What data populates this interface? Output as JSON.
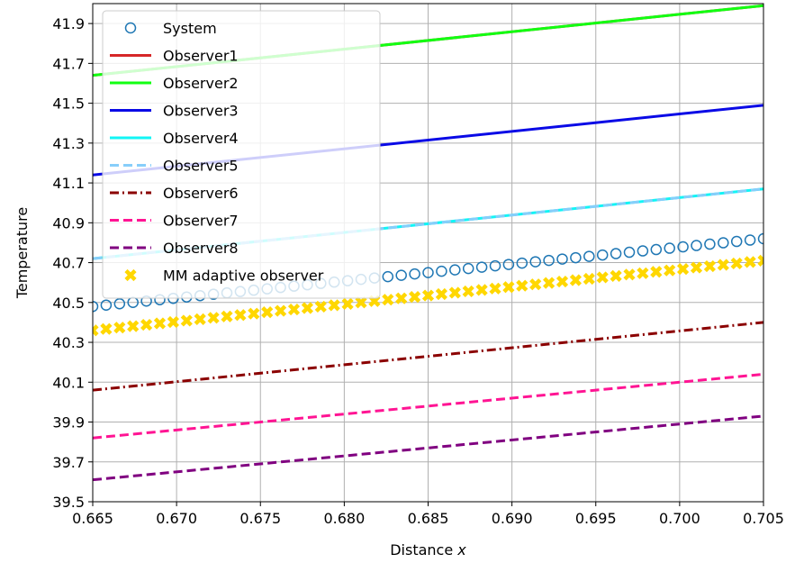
{
  "chart_data": {
    "type": "line",
    "xlabel": "Distance x",
    "xlabel_plain": "Distance ",
    "xlabel_var": "x",
    "ylabel": "Temperature",
    "xlim": [
      0.665,
      0.705
    ],
    "ylim": [
      39.5,
      42.0
    ],
    "xticks": [
      0.665,
      0.67,
      0.675,
      0.68,
      0.685,
      0.69,
      0.695,
      0.7,
      0.705
    ],
    "xtick_labels": [
      "0.665",
      "0.670",
      "0.675",
      "0.680",
      "0.685",
      "0.690",
      "0.695",
      "0.700",
      "0.705"
    ],
    "yticks": [
      39.5,
      39.7,
      39.9,
      40.1,
      40.3,
      40.5,
      40.7,
      40.9,
      41.1,
      41.3,
      41.5,
      41.7,
      41.9
    ],
    "ytick_labels": [
      "39.5",
      "39.7",
      "39.9",
      "40.1",
      "40.3",
      "40.5",
      "40.7",
      "40.9",
      "41.1",
      "41.3",
      "41.5",
      "41.7",
      "41.9"
    ],
    "grid": true,
    "legend_position": "top-left",
    "series": [
      {
        "name": "System",
        "style": "circle-markers",
        "color": "#1f77b4",
        "x": [
          0.665,
          0.705
        ],
        "y": [
          40.48,
          40.82
        ]
      },
      {
        "name": "Observer1",
        "style": "solid",
        "color": "#d62728",
        "x": [
          0.665,
          0.705
        ],
        "y": [
          41.64,
          41.99
        ]
      },
      {
        "name": "Observer2",
        "style": "solid",
        "color": "#12ff12",
        "x": [
          0.665,
          0.705
        ],
        "y": [
          41.64,
          41.99
        ]
      },
      {
        "name": "Observer3",
        "style": "solid",
        "color": "#0a0ae6",
        "x": [
          0.665,
          0.705
        ],
        "y": [
          41.14,
          41.49
        ]
      },
      {
        "name": "Observer4",
        "style": "solid",
        "color": "#12f5f5",
        "x": [
          0.665,
          0.705
        ],
        "y": [
          40.72,
          41.07
        ]
      },
      {
        "name": "Observer5",
        "style": "dashed",
        "color": "#87cefa",
        "x": [
          0.665,
          0.705
        ],
        "y": [
          40.72,
          41.07
        ]
      },
      {
        "name": "Observer6",
        "style": "dashdot",
        "color": "#8b0000",
        "x": [
          0.665,
          0.705
        ],
        "y": [
          40.06,
          40.4
        ]
      },
      {
        "name": "Observer7",
        "style": "dashed",
        "color": "#ff1493",
        "x": [
          0.665,
          0.705
        ],
        "y": [
          39.82,
          40.14
        ]
      },
      {
        "name": "Observer8",
        "style": "dashed",
        "color": "#800080",
        "x": [
          0.665,
          0.705
        ],
        "y": [
          39.61,
          39.93
        ]
      },
      {
        "name": "MM adaptive observer",
        "style": "x-markers",
        "color": "#ffd700",
        "x": [
          0.665,
          0.705
        ],
        "y": [
          40.36,
          40.71
        ]
      }
    ]
  }
}
